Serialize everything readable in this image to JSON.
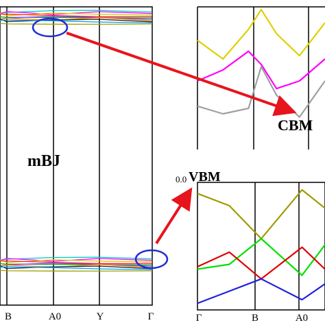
{
  "colors": {
    "frame": "#000000",
    "arrow": "#e8141c",
    "ellipse": "#1f2fd0",
    "bands": [
      "#00c8c8",
      "#ff00ff",
      "#d8c800",
      "#ff2020",
      "#00b000",
      "#8040ff",
      "#ff8000",
      "#202020",
      "#00a0ff",
      "#a0a000"
    ]
  },
  "chart_data": [
    {
      "type": "line",
      "panel": "main band structure",
      "annotation": "mBJ",
      "x_ticks": [
        "B",
        "A0",
        "Y",
        "Γ"
      ],
      "conduction_band_group": "dense bundle near top of frame",
      "valence_band_group": "dense bundle near bottom of frame"
    },
    {
      "type": "line",
      "panel": "conduction band minimum zoom",
      "annotation": "CBM",
      "series": [
        {
          "color": "#e0d000",
          "x": [
            0,
            0.2,
            0.4,
            0.5,
            0.62,
            0.8,
            1.0
          ],
          "y": [
            0.72,
            0.55,
            0.82,
            1.0,
            0.78,
            0.58,
            0.88
          ]
        },
        {
          "color": "#ff00ff",
          "x": [
            0,
            0.2,
            0.4,
            0.5,
            0.62,
            0.8,
            1.0
          ],
          "y": [
            0.35,
            0.45,
            0.62,
            0.5,
            0.28,
            0.35,
            0.55
          ]
        },
        {
          "color": "#a0a0a0",
          "x": [
            0,
            0.2,
            0.4,
            0.5,
            0.62,
            0.8,
            1.0
          ],
          "y": [
            0.12,
            0.05,
            0.1,
            0.48,
            0.22,
            0.02,
            0.35
          ]
        }
      ]
    },
    {
      "type": "line",
      "panel": "valence band maximum zoom",
      "annotation": "VBM",
      "ytick": "0.0",
      "x_ticks": [
        "Γ",
        "B",
        "A0"
      ],
      "series": [
        {
          "color": "#a09a00",
          "x": [
            0,
            0.25,
            0.5,
            0.82,
            1.0
          ],
          "y": [
            0.92,
            0.82,
            0.55,
            0.95,
            0.8
          ]
        },
        {
          "color": "#00e000",
          "x": [
            0,
            0.25,
            0.5,
            0.82,
            1.0
          ],
          "y": [
            0.3,
            0.34,
            0.55,
            0.25,
            0.5
          ]
        },
        {
          "color": "#e00000",
          "x": [
            0,
            0.25,
            0.5,
            0.82,
            1.0
          ],
          "y": [
            0.32,
            0.44,
            0.22,
            0.48,
            0.3
          ]
        },
        {
          "color": "#2020e0",
          "x": [
            0,
            0.25,
            0.5,
            0.82,
            1.0
          ],
          "y": [
            0.02,
            0.12,
            0.22,
            0.05,
            0.18
          ]
        }
      ]
    }
  ]
}
